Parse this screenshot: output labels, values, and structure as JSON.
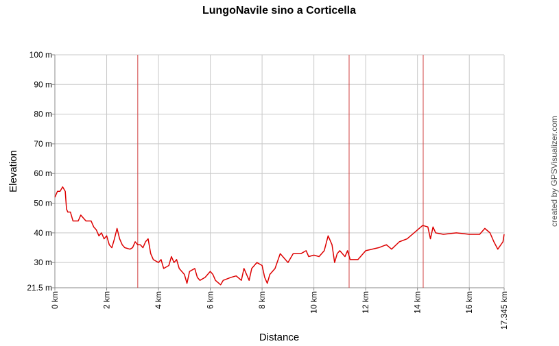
{
  "chart_data": {
    "type": "line",
    "title": "LungoNavile sino a Corticella",
    "x_label": "Distance",
    "y_label": "Elevation",
    "credit": "created by GPSVisualizer.com",
    "xlim": [
      0,
      17.345
    ],
    "ylim": [
      21.5,
      100
    ],
    "xticks": [
      {
        "value": 0,
        "label": "0 km"
      },
      {
        "value": 2,
        "label": "2 km"
      },
      {
        "value": 4,
        "label": "4 km"
      },
      {
        "value": 6,
        "label": "6 km"
      },
      {
        "value": 8,
        "label": "8 km"
      },
      {
        "value": 10,
        "label": "10 km"
      },
      {
        "value": 12,
        "label": "12 km"
      },
      {
        "value": 14,
        "label": "14 km"
      },
      {
        "value": 16,
        "label": "16 km"
      },
      {
        "value": 17.345,
        "label": "17.345 km"
      }
    ],
    "yticks": [
      {
        "value": 21.5,
        "label": "21.5 m"
      },
      {
        "value": 30,
        "label": "30 m"
      },
      {
        "value": 40,
        "label": "40 m"
      },
      {
        "value": 50,
        "label": "50 m"
      },
      {
        "value": 60,
        "label": "60 m"
      },
      {
        "value": 70,
        "label": "70 m"
      },
      {
        "value": 80,
        "label": "80 m"
      },
      {
        "value": 90,
        "label": "90 m"
      },
      {
        "value": 100,
        "label": "100 m"
      }
    ],
    "grid": true,
    "vlines": [
      3.2,
      11.36,
      14.22
    ],
    "vline_color": "#d04040",
    "series": [
      {
        "name": "Elevation",
        "color": "#dd0000",
        "x": [
          0,
          0.1,
          0.2,
          0.3,
          0.4,
          0.45,
          0.5,
          0.6,
          0.7,
          0.9,
          1.0,
          1.1,
          1.2,
          1.4,
          1.5,
          1.6,
          1.7,
          1.8,
          1.9,
          2.0,
          2.1,
          2.2,
          2.3,
          2.4,
          2.5,
          2.6,
          2.7,
          2.9,
          3.0,
          3.1,
          3.2,
          3.3,
          3.4,
          3.5,
          3.6,
          3.7,
          3.8,
          4.0,
          4.1,
          4.2,
          4.4,
          4.5,
          4.6,
          4.7,
          4.8,
          5.0,
          5.1,
          5.2,
          5.4,
          5.5,
          5.6,
          5.8,
          6.0,
          6.1,
          6.2,
          6.4,
          6.5,
          6.8,
          7.0,
          7.2,
          7.3,
          7.5,
          7.6,
          7.8,
          8.0,
          8.1,
          8.2,
          8.3,
          8.5,
          8.7,
          8.8,
          9.0,
          9.2,
          9.5,
          9.7,
          9.8,
          10.0,
          10.2,
          10.4,
          10.55,
          10.7,
          10.8,
          10.9,
          11.0,
          11.2,
          11.3,
          11.4,
          11.7,
          12.0,
          12.5,
          12.8,
          13.0,
          13.3,
          13.6,
          14.0,
          14.2,
          14.4,
          14.5,
          14.6,
          14.7,
          15.0,
          15.5,
          16.0,
          16.4,
          16.6,
          16.8,
          16.95,
          17.1,
          17.3,
          17.345
        ],
        "values": [
          52,
          54,
          54,
          55.5,
          54,
          48,
          47,
          47,
          44,
          44,
          46,
          45,
          44,
          44,
          42,
          41,
          39,
          40,
          38,
          39,
          36,
          35,
          38,
          41.5,
          38,
          36,
          35,
          34.5,
          35,
          37,
          36,
          36,
          35,
          37,
          38,
          33,
          31,
          30,
          31,
          28,
          29,
          32,
          30,
          31,
          28,
          26,
          23,
          27,
          28,
          25,
          24,
          25,
          27,
          26,
          24,
          22.5,
          24,
          25,
          25.5,
          24,
          28,
          24,
          28,
          30,
          29,
          25,
          23,
          26,
          28,
          33,
          32,
          30,
          33,
          33,
          34,
          32,
          32.5,
          32,
          34,
          39,
          36,
          30,
          33,
          34,
          32,
          34,
          31,
          31,
          34,
          35,
          36,
          34.5,
          37,
          38,
          41,
          42.5,
          42,
          38,
          42,
          40,
          39.5,
          40,
          39.5,
          39.5,
          41.5,
          40,
          37,
          34.5,
          37,
          39.5
        ]
      }
    ]
  }
}
